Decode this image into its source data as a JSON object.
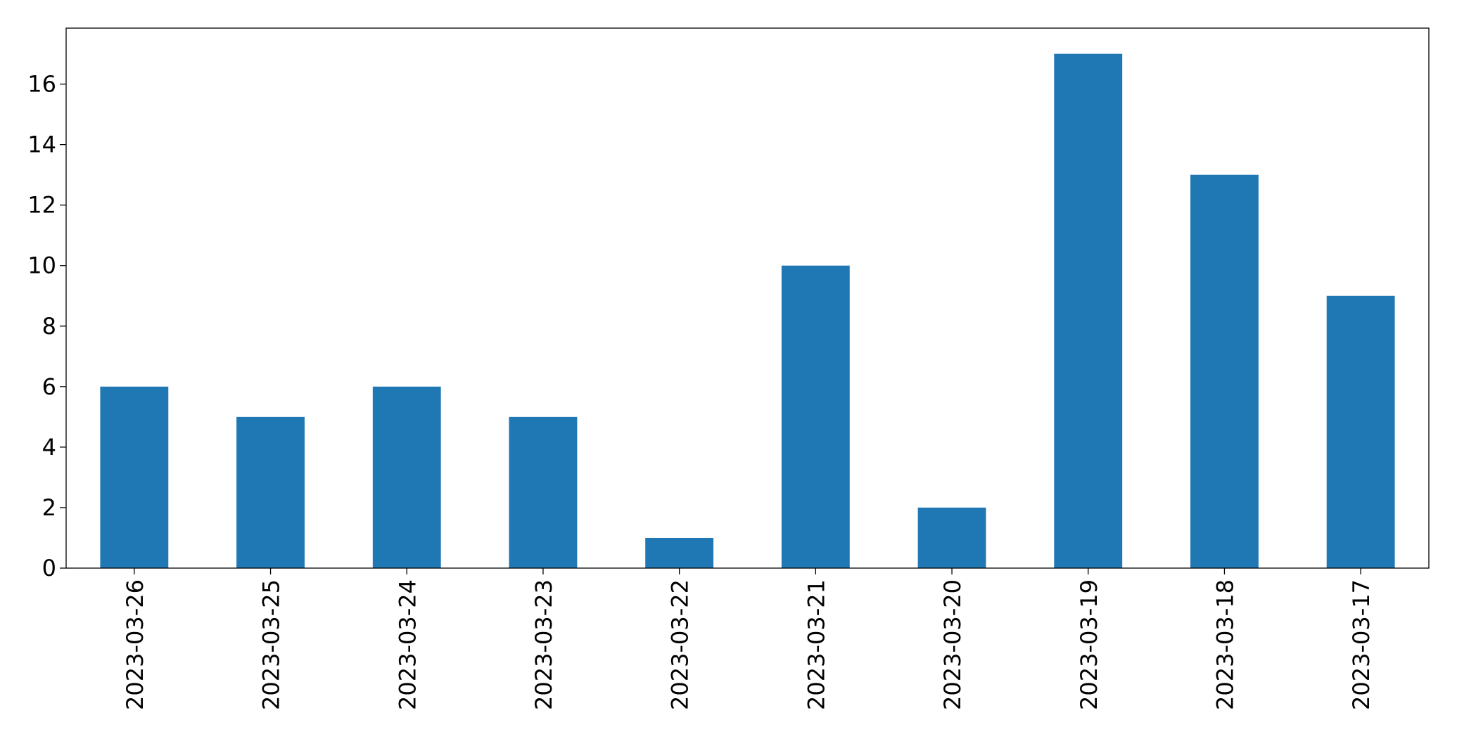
{
  "chart_data": {
    "type": "bar",
    "categories": [
      "2023-03-26",
      "2023-03-25",
      "2023-03-24",
      "2023-03-23",
      "2023-03-22",
      "2023-03-21",
      "2023-03-20",
      "2023-03-19",
      "2023-03-18",
      "2023-03-17"
    ],
    "values": [
      6,
      5,
      6,
      5,
      1,
      10,
      2,
      17,
      13,
      9
    ],
    "color": "#1f77b4",
    "ylim": [
      0,
      17.85
    ],
    "yticks": [
      0,
      2,
      4,
      6,
      8,
      10,
      12,
      14,
      16
    ],
    "grid": false
  }
}
